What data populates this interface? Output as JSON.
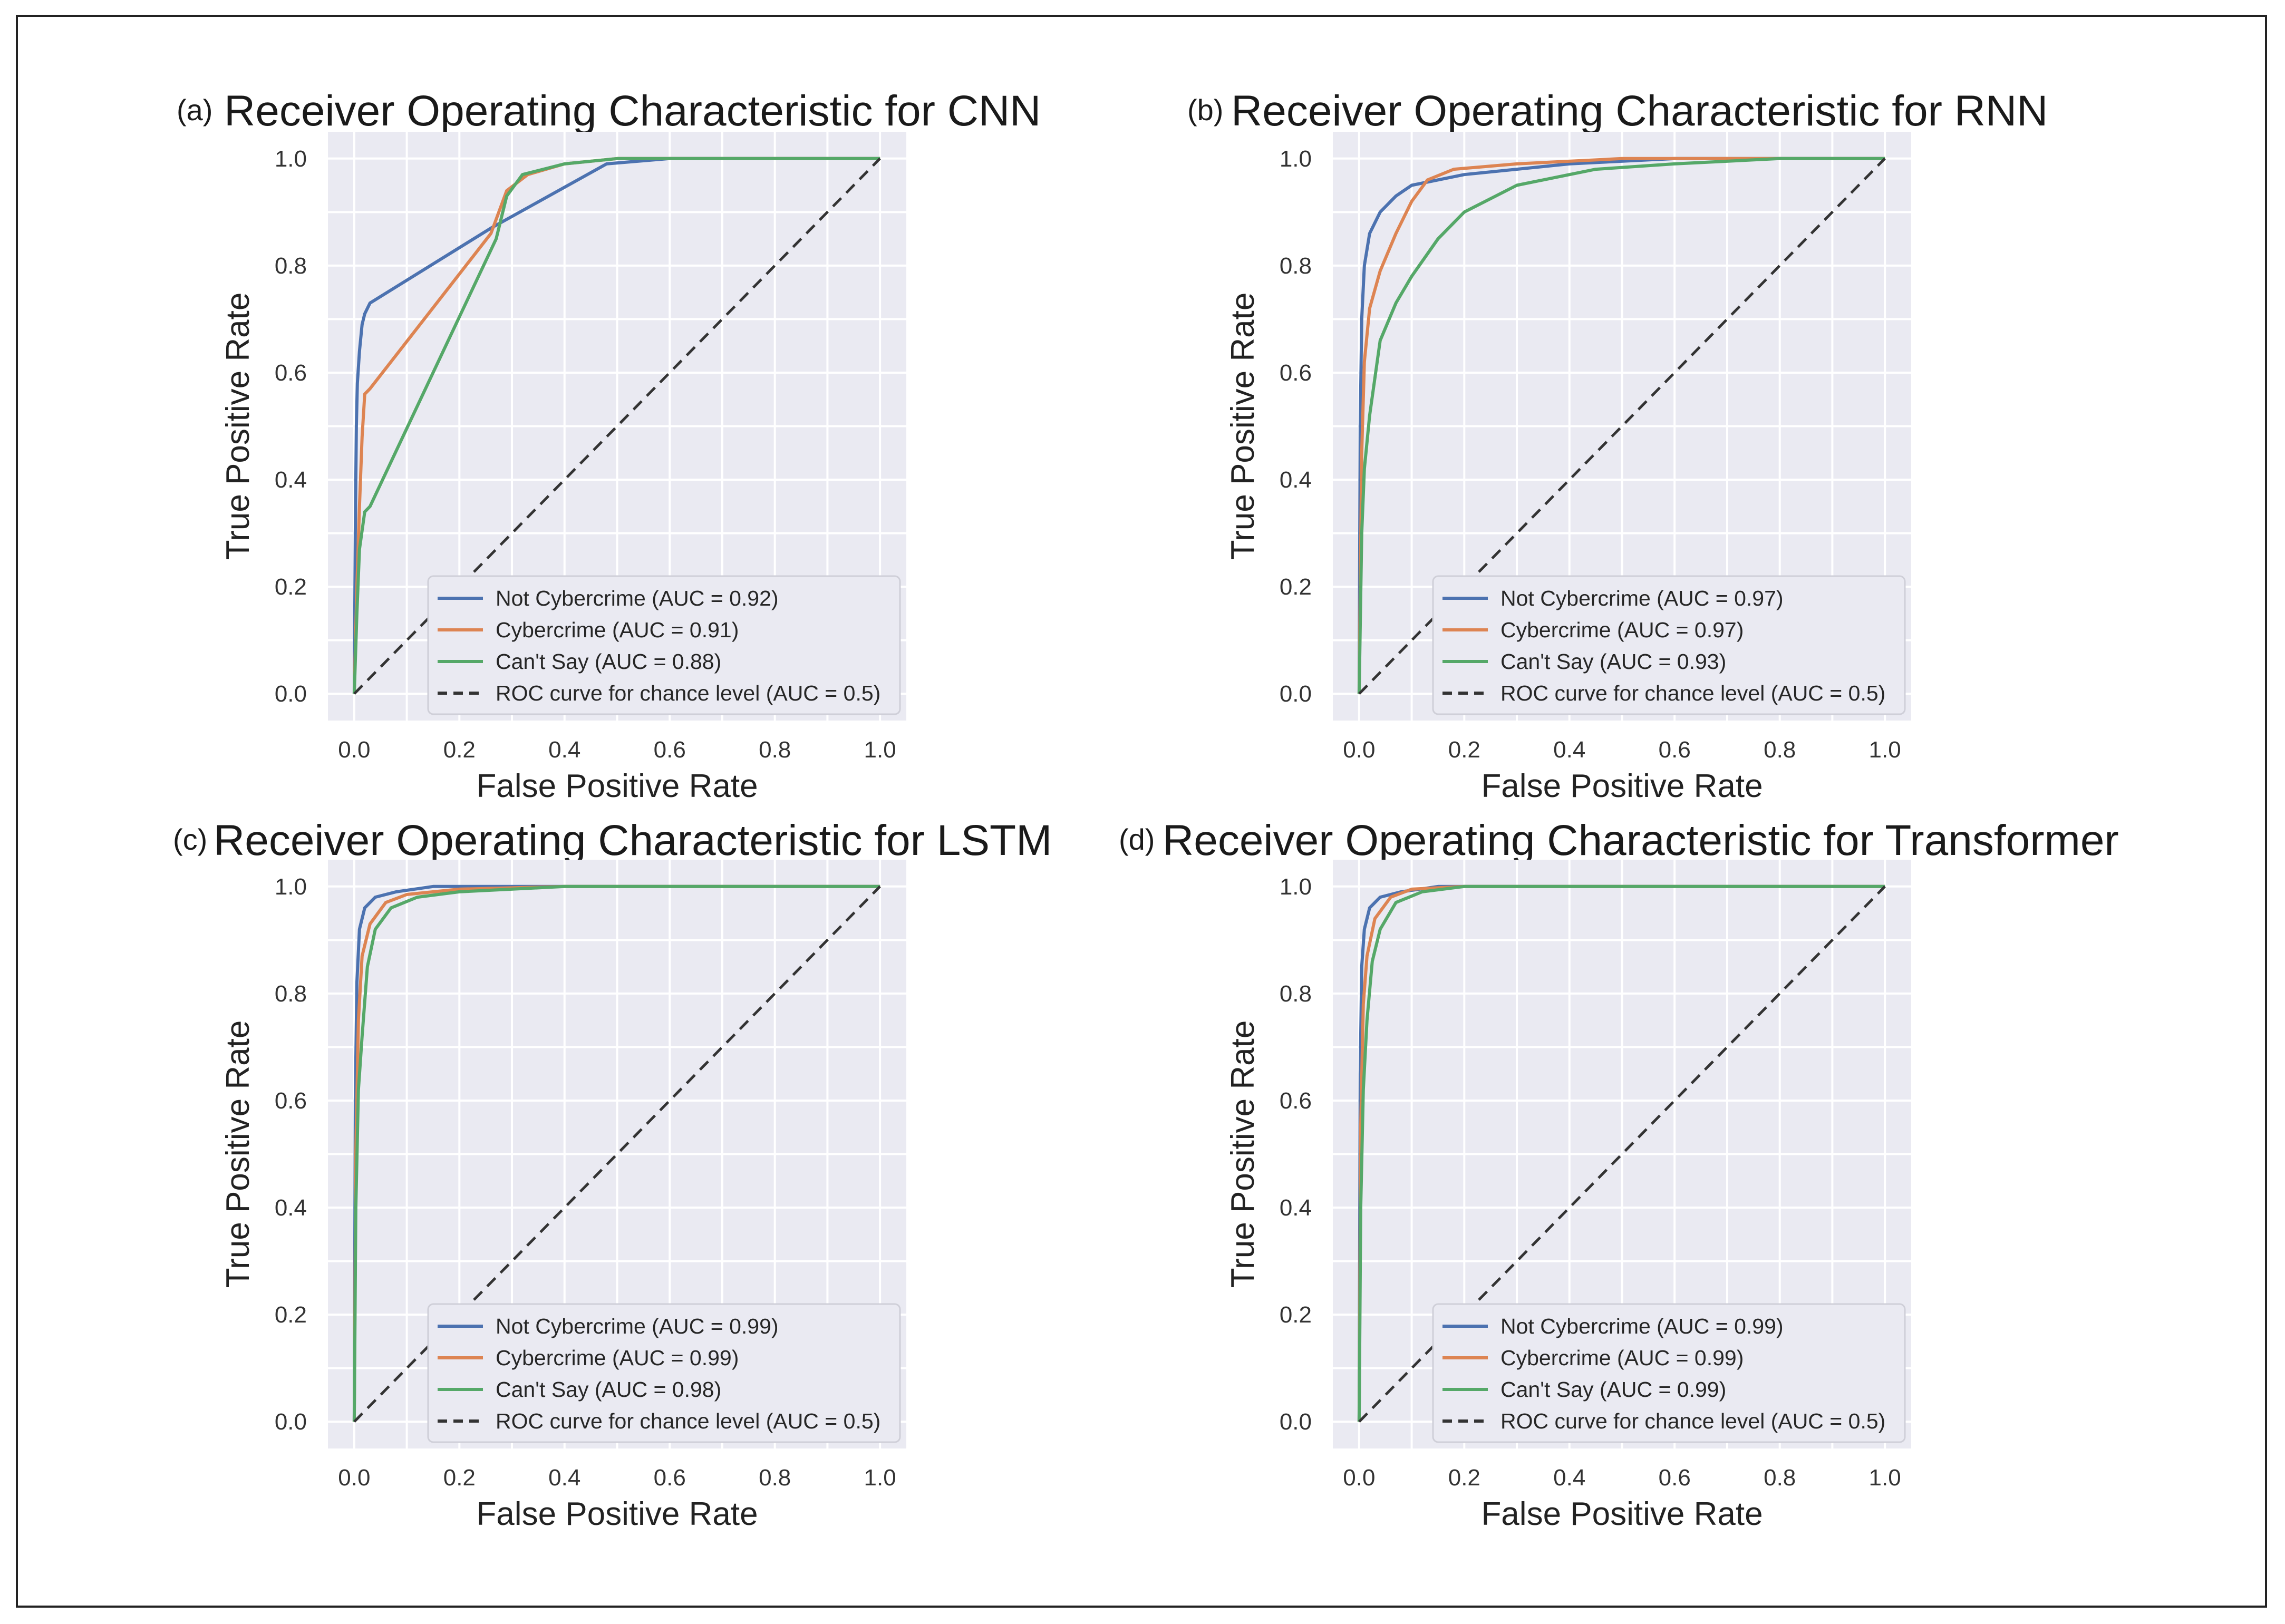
{
  "chart_data": [
    {
      "type": "line",
      "panel_label": "(a)",
      "title": "Receiver Operating Characteristic for CNN",
      "xlabel": "False Positive Rate",
      "ylabel": "True Positive Rate",
      "xlim": [
        -0.05,
        1.05
      ],
      "ylim": [
        -0.05,
        1.05
      ],
      "xticks": [
        "0.0",
        "0.2",
        "0.4",
        "0.6",
        "0.8",
        "1.0"
      ],
      "yticks": [
        "0.0",
        "0.2",
        "0.4",
        "0.6",
        "0.8",
        "1.0"
      ],
      "legend_position": "lower-right",
      "series": [
        {
          "name": "Not Cybercrime (AUC = 0.92)",
          "color": "#4c72b0",
          "style": "solid",
          "points": [
            [
              0,
              0
            ],
            [
              0.002,
              0.3
            ],
            [
              0.004,
              0.5
            ],
            [
              0.006,
              0.58
            ],
            [
              0.01,
              0.64
            ],
            [
              0.015,
              0.69
            ],
            [
              0.02,
              0.71
            ],
            [
              0.03,
              0.73
            ],
            [
              0.26,
              0.87
            ],
            [
              0.48,
              0.99
            ],
            [
              0.6,
              1.0
            ],
            [
              1.0,
              1.0
            ]
          ]
        },
        {
          "name": "Cybercrime (AUC = 0.91)",
          "color": "#dd8452",
          "style": "solid",
          "points": [
            [
              0,
              0
            ],
            [
              0.005,
              0.2
            ],
            [
              0.01,
              0.35
            ],
            [
              0.015,
              0.48
            ],
            [
              0.02,
              0.56
            ],
            [
              0.03,
              0.57
            ],
            [
              0.26,
              0.86
            ],
            [
              0.29,
              0.94
            ],
            [
              0.33,
              0.97
            ],
            [
              0.4,
              0.99
            ],
            [
              0.5,
              1.0
            ],
            [
              1.0,
              1.0
            ]
          ]
        },
        {
          "name": "Can't Say (AUC = 0.88)",
          "color": "#55a868",
          "style": "solid",
          "points": [
            [
              0,
              0
            ],
            [
              0.005,
              0.15
            ],
            [
              0.01,
              0.27
            ],
            [
              0.02,
              0.34
            ],
            [
              0.03,
              0.35
            ],
            [
              0.27,
              0.85
            ],
            [
              0.29,
              0.93
            ],
            [
              0.32,
              0.97
            ],
            [
              0.4,
              0.99
            ],
            [
              0.5,
              1.0
            ],
            [
              1.0,
              1.0
            ]
          ]
        },
        {
          "name": "ROC curve for chance level (AUC = 0.5)",
          "color": "#333333",
          "style": "dashed",
          "points": [
            [
              0,
              0
            ],
            [
              1,
              1
            ]
          ]
        }
      ]
    },
    {
      "type": "line",
      "panel_label": "(b)",
      "title": "Receiver Operating Characteristic for RNN",
      "xlabel": "False Positive Rate",
      "ylabel": "True Positive Rate",
      "xlim": [
        -0.05,
        1.05
      ],
      "ylim": [
        -0.05,
        1.05
      ],
      "xticks": [
        "0.0",
        "0.2",
        "0.4",
        "0.6",
        "0.8",
        "1.0"
      ],
      "yticks": [
        "0.0",
        "0.2",
        "0.4",
        "0.6",
        "0.8",
        "1.0"
      ],
      "legend_position": "lower-right",
      "series": [
        {
          "name": "Not Cybercrime (AUC = 0.97)",
          "color": "#4c72b0",
          "style": "solid",
          "points": [
            [
              0,
              0
            ],
            [
              0.002,
              0.5
            ],
            [
              0.005,
              0.7
            ],
            [
              0.01,
              0.8
            ],
            [
              0.02,
              0.86
            ],
            [
              0.04,
              0.9
            ],
            [
              0.07,
              0.93
            ],
            [
              0.1,
              0.95
            ],
            [
              0.2,
              0.97
            ],
            [
              0.4,
              0.99
            ],
            [
              0.6,
              1.0
            ],
            [
              1.0,
              1.0
            ]
          ]
        },
        {
          "name": "Cybercrime (AUC = 0.97)",
          "color": "#dd8452",
          "style": "solid",
          "points": [
            [
              0,
              0
            ],
            [
              0.005,
              0.45
            ],
            [
              0.01,
              0.62
            ],
            [
              0.02,
              0.72
            ],
            [
              0.04,
              0.79
            ],
            [
              0.07,
              0.86
            ],
            [
              0.1,
              0.92
            ],
            [
              0.13,
              0.96
            ],
            [
              0.18,
              0.98
            ],
            [
              0.3,
              0.99
            ],
            [
              0.5,
              1.0
            ],
            [
              1.0,
              1.0
            ]
          ]
        },
        {
          "name": "Can't Say (AUC = 0.93)",
          "color": "#55a868",
          "style": "solid",
          "points": [
            [
              0,
              0
            ],
            [
              0.005,
              0.3
            ],
            [
              0.01,
              0.42
            ],
            [
              0.02,
              0.52
            ],
            [
              0.04,
              0.66
            ],
            [
              0.07,
              0.73
            ],
            [
              0.1,
              0.78
            ],
            [
              0.15,
              0.85
            ],
            [
              0.2,
              0.9
            ],
            [
              0.3,
              0.95
            ],
            [
              0.45,
              0.98
            ],
            [
              0.6,
              0.99
            ],
            [
              0.8,
              1.0
            ],
            [
              1.0,
              1.0
            ]
          ]
        },
        {
          "name": "ROC curve for chance level (AUC = 0.5)",
          "color": "#333333",
          "style": "dashed",
          "points": [
            [
              0,
              0
            ],
            [
              1,
              1
            ]
          ]
        }
      ]
    },
    {
      "type": "line",
      "panel_label": "(c)",
      "title": "Receiver Operating Characteristic for LSTM",
      "xlabel": "False Positive Rate",
      "ylabel": "True Positive Rate",
      "xlim": [
        -0.05,
        1.05
      ],
      "ylim": [
        -0.05,
        1.05
      ],
      "xticks": [
        "0.0",
        "0.2",
        "0.4",
        "0.6",
        "0.8",
        "1.0"
      ],
      "yticks": [
        "0.0",
        "0.2",
        "0.4",
        "0.6",
        "0.8",
        "1.0"
      ],
      "legend_position": "lower-right",
      "series": [
        {
          "name": "Not Cybercrime (AUC = 0.99)",
          "color": "#4c72b0",
          "style": "solid",
          "points": [
            [
              0,
              0
            ],
            [
              0.002,
              0.6
            ],
            [
              0.005,
              0.82
            ],
            [
              0.01,
              0.92
            ],
            [
              0.02,
              0.96
            ],
            [
              0.04,
              0.98
            ],
            [
              0.08,
              0.99
            ],
            [
              0.15,
              1.0
            ],
            [
              1.0,
              1.0
            ]
          ]
        },
        {
          "name": "Cybercrime (AUC = 0.99)",
          "color": "#dd8452",
          "style": "solid",
          "points": [
            [
              0,
              0
            ],
            [
              0.003,
              0.5
            ],
            [
              0.008,
              0.75
            ],
            [
              0.015,
              0.87
            ],
            [
              0.03,
              0.93
            ],
            [
              0.06,
              0.97
            ],
            [
              0.1,
              0.985
            ],
            [
              0.2,
              0.995
            ],
            [
              0.4,
              1.0
            ],
            [
              1.0,
              1.0
            ]
          ]
        },
        {
          "name": "Can't Say (AUC = 0.98)",
          "color": "#55a868",
          "style": "solid",
          "points": [
            [
              0,
              0
            ],
            [
              0.003,
              0.4
            ],
            [
              0.008,
              0.62
            ],
            [
              0.015,
              0.72
            ],
            [
              0.025,
              0.85
            ],
            [
              0.04,
              0.92
            ],
            [
              0.07,
              0.96
            ],
            [
              0.12,
              0.98
            ],
            [
              0.2,
              0.99
            ],
            [
              0.4,
              1.0
            ],
            [
              1.0,
              1.0
            ]
          ]
        },
        {
          "name": "ROC curve for chance level (AUC = 0.5)",
          "color": "#333333",
          "style": "dashed",
          "points": [
            [
              0,
              0
            ],
            [
              1,
              1
            ]
          ]
        }
      ]
    },
    {
      "type": "line",
      "panel_label": "(d)",
      "title": "Receiver Operating Characteristic for Transformer",
      "xlabel": "False Positive Rate",
      "ylabel": "True Positive Rate",
      "xlim": [
        -0.05,
        1.05
      ],
      "ylim": [
        -0.05,
        1.05
      ],
      "xticks": [
        "0.0",
        "0.2",
        "0.4",
        "0.6",
        "0.8",
        "1.0"
      ],
      "yticks": [
        "0.0",
        "0.2",
        "0.4",
        "0.6",
        "0.8",
        "1.0"
      ],
      "legend_position": "lower-right",
      "series": [
        {
          "name": "Not Cybercrime (AUC = 0.99)",
          "color": "#4c72b0",
          "style": "solid",
          "points": [
            [
              0,
              0
            ],
            [
              0.002,
              0.65
            ],
            [
              0.005,
              0.85
            ],
            [
              0.01,
              0.92
            ],
            [
              0.02,
              0.96
            ],
            [
              0.04,
              0.98
            ],
            [
              0.08,
              0.99
            ],
            [
              0.15,
              1.0
            ],
            [
              1.0,
              1.0
            ]
          ]
        },
        {
          "name": "Cybercrime (AUC = 0.99)",
          "color": "#dd8452",
          "style": "solid",
          "points": [
            [
              0,
              0
            ],
            [
              0.003,
              0.55
            ],
            [
              0.008,
              0.78
            ],
            [
              0.015,
              0.87
            ],
            [
              0.03,
              0.94
            ],
            [
              0.06,
              0.98
            ],
            [
              0.1,
              0.995
            ],
            [
              0.2,
              1.0
            ],
            [
              1.0,
              1.0
            ]
          ]
        },
        {
          "name": "Can't Say (AUC = 0.99)",
          "color": "#55a868",
          "style": "solid",
          "points": [
            [
              0,
              0
            ],
            [
              0.003,
              0.4
            ],
            [
              0.008,
              0.62
            ],
            [
              0.015,
              0.75
            ],
            [
              0.025,
              0.86
            ],
            [
              0.04,
              0.92
            ],
            [
              0.07,
              0.97
            ],
            [
              0.12,
              0.99
            ],
            [
              0.2,
              1.0
            ],
            [
              1.0,
              1.0
            ]
          ]
        },
        {
          "name": "ROC curve for chance level (AUC = 0.5)",
          "color": "#333333",
          "style": "dashed",
          "points": [
            [
              0,
              0
            ],
            [
              1,
              1
            ]
          ]
        }
      ]
    }
  ]
}
